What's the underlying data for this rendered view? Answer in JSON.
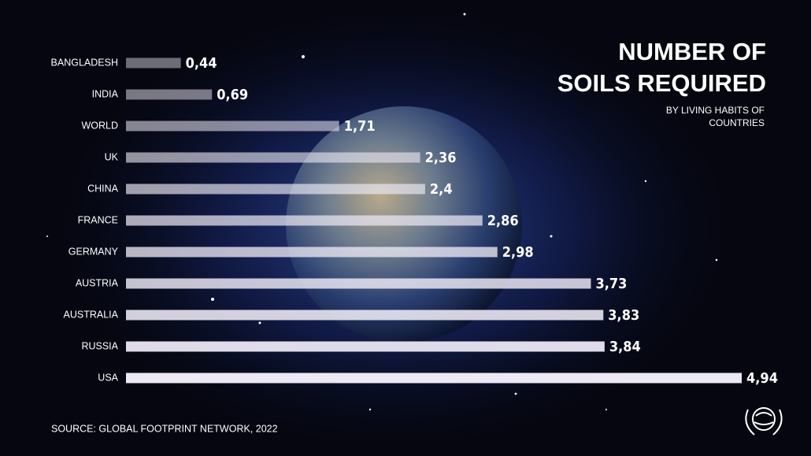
{
  "chart_data": {
    "type": "bar",
    "orientation": "horizontal",
    "title": [
      "NUMBER OF",
      "SOILS REQUIRED"
    ],
    "subtitle": [
      "BY LIVING HABITS OF",
      "COUNTRIES"
    ],
    "source": "SOURCE: GLOBAL FOOTPRINT NETWORK, 2022",
    "categories": [
      "BANGLADESH",
      "INDIA",
      "WORLD",
      "UK",
      "CHINA",
      "FRANCE",
      "GERMANY",
      "AUSTRIA",
      "AUSTRALIA",
      "RUSSIA",
      "USA"
    ],
    "values": [
      0.44,
      0.69,
      1.71,
      2.36,
      2.4,
      2.86,
      2.98,
      3.73,
      3.83,
      3.84,
      4.94
    ],
    "value_labels": [
      "0,44",
      "0,69",
      "1,71",
      "2,36",
      "2,4",
      "2,86",
      "2,98",
      "3,73",
      "3,83",
      "3,84",
      "4,94"
    ],
    "color": "#ece8f4"
  }
}
